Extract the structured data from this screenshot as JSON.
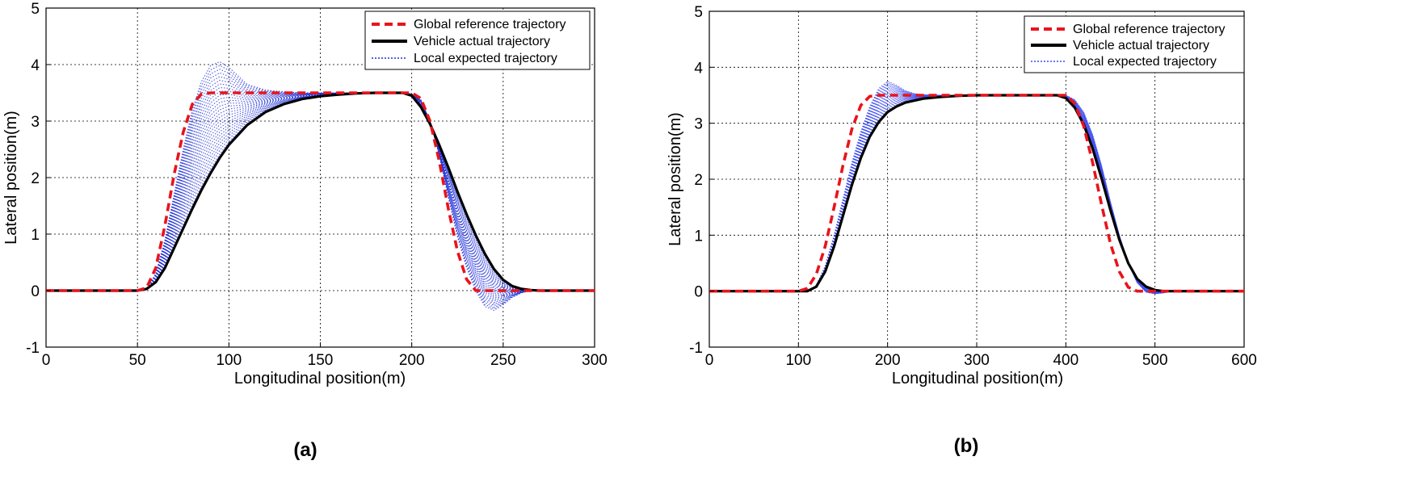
{
  "chart_data": [
    {
      "type": "line",
      "caption": "(a)",
      "xlabel": "Longitudinal position(m)",
      "ylabel": "Lateral position(m)",
      "xlim": [
        0,
        300
      ],
      "ylim": [
        -1,
        5
      ],
      "xticks": [
        0,
        50,
        100,
        150,
        200,
        250,
        300
      ],
      "yticks": [
        -1,
        0,
        1,
        2,
        3,
        4,
        5
      ],
      "grid": true,
      "legend_position": "top-right",
      "colors": {
        "global": "#e8141c",
        "actual": "#000000",
        "local": "#1f2fd6"
      },
      "series": [
        {
          "name": "Global reference trajectory",
          "x": [
            0,
            50,
            55,
            60,
            65,
            70,
            75,
            80,
            85,
            90,
            200,
            205,
            210,
            215,
            220,
            225,
            230,
            235,
            300
          ],
          "y": [
            0,
            0,
            0.05,
            0.4,
            1.15,
            2.05,
            2.8,
            3.3,
            3.48,
            3.5,
            3.5,
            3.4,
            3.0,
            2.3,
            1.45,
            0.7,
            0.2,
            0,
            0
          ]
        },
        {
          "name": "Vehicle actual trajectory",
          "x": [
            0,
            50,
            55,
            60,
            65,
            70,
            75,
            80,
            85,
            90,
            95,
            100,
            110,
            120,
            130,
            140,
            150,
            160,
            170,
            180,
            190,
            195,
            200,
            205,
            210,
            215,
            220,
            225,
            230,
            235,
            240,
            245,
            250,
            255,
            260,
            265,
            270,
            280,
            300
          ],
          "y": [
            0,
            0,
            0.03,
            0.15,
            0.4,
            0.75,
            1.1,
            1.45,
            1.78,
            2.08,
            2.35,
            2.58,
            2.93,
            3.16,
            3.3,
            3.39,
            3.44,
            3.47,
            3.49,
            3.5,
            3.5,
            3.5,
            3.45,
            3.25,
            2.95,
            2.58,
            2.18,
            1.75,
            1.35,
            0.98,
            0.65,
            0.38,
            0.19,
            0.08,
            0.03,
            0.01,
            0,
            0,
            0
          ]
        },
        {
          "name": "Local expected trajectory",
          "x": [
            0,
            50,
            55,
            60,
            65,
            70,
            75,
            80,
            85,
            90,
            95,
            100,
            105,
            110,
            120,
            130,
            140,
            150,
            170,
            190,
            195,
            200,
            205,
            210,
            215,
            220,
            225,
            230,
            235,
            240,
            245,
            250,
            255,
            260,
            265,
            270,
            280,
            300
          ],
          "y": [
            0,
            0,
            0.03,
            0.3,
            0.9,
            1.7,
            2.5,
            3.2,
            3.7,
            3.98,
            4.05,
            3.95,
            3.8,
            3.65,
            3.55,
            3.52,
            3.5,
            3.5,
            3.5,
            3.5,
            3.5,
            3.48,
            3.38,
            3.0,
            2.4,
            1.65,
            0.95,
            0.4,
            0.0,
            -0.28,
            -0.35,
            -0.25,
            -0.12,
            -0.04,
            0,
            0,
            0,
            0
          ]
        }
      ]
    },
    {
      "type": "line",
      "caption": "(b)",
      "xlabel": "Longitudinal position(m)",
      "ylabel": "Lateral position(m)",
      "xlim": [
        0,
        600
      ],
      "ylim": [
        -1,
        5
      ],
      "xticks": [
        0,
        100,
        200,
        300,
        400,
        500,
        600
      ],
      "yticks": [
        -1,
        0,
        1,
        2,
        3,
        4,
        5
      ],
      "grid": true,
      "legend_position": "top-right",
      "colors": {
        "global": "#e8141c",
        "actual": "#000000",
        "local": "#3d4bf0"
      },
      "series": [
        {
          "name": "Global reference trajectory",
          "x": [
            0,
            100,
            110,
            120,
            130,
            140,
            150,
            160,
            170,
            180,
            190,
            400,
            410,
            420,
            430,
            440,
            450,
            460,
            470,
            480,
            600
          ],
          "y": [
            0,
            0,
            0.05,
            0.3,
            0.8,
            1.5,
            2.25,
            2.9,
            3.32,
            3.48,
            3.5,
            3.5,
            3.35,
            2.95,
            2.3,
            1.55,
            0.85,
            0.35,
            0.07,
            0,
            0
          ]
        },
        {
          "name": "Vehicle actual trajectory",
          "x": [
            0,
            110,
            120,
            130,
            140,
            150,
            160,
            170,
            180,
            190,
            200,
            210,
            220,
            240,
            260,
            280,
            300,
            320,
            340,
            360,
            380,
            390,
            400,
            410,
            420,
            430,
            440,
            450,
            460,
            470,
            480,
            490,
            500,
            510,
            600
          ],
          "y": [
            0,
            0,
            0.08,
            0.35,
            0.8,
            1.35,
            1.9,
            2.38,
            2.76,
            3.02,
            3.2,
            3.3,
            3.37,
            3.44,
            3.47,
            3.49,
            3.5,
            3.5,
            3.5,
            3.5,
            3.5,
            3.5,
            3.45,
            3.28,
            2.98,
            2.55,
            2.02,
            1.45,
            0.92,
            0.5,
            0.22,
            0.08,
            0.02,
            0,
            0
          ]
        },
        {
          "name": "Local expected trajectory",
          "x": [
            0,
            110,
            120,
            130,
            140,
            150,
            160,
            170,
            180,
            190,
            200,
            210,
            220,
            230,
            240,
            260,
            300,
            380,
            390,
            400,
            410,
            420,
            430,
            440,
            450,
            460,
            470,
            480,
            490,
            500,
            510,
            520,
            600
          ],
          "y": [
            0,
            0,
            0.1,
            0.45,
            1.0,
            1.65,
            2.3,
            2.85,
            3.3,
            3.62,
            3.75,
            3.68,
            3.58,
            3.53,
            3.51,
            3.5,
            3.5,
            3.5,
            3.5,
            3.5,
            3.42,
            3.2,
            2.8,
            2.25,
            1.6,
            1.0,
            0.5,
            0.15,
            -0.02,
            -0.05,
            -0.03,
            0,
            0
          ]
        }
      ]
    }
  ]
}
